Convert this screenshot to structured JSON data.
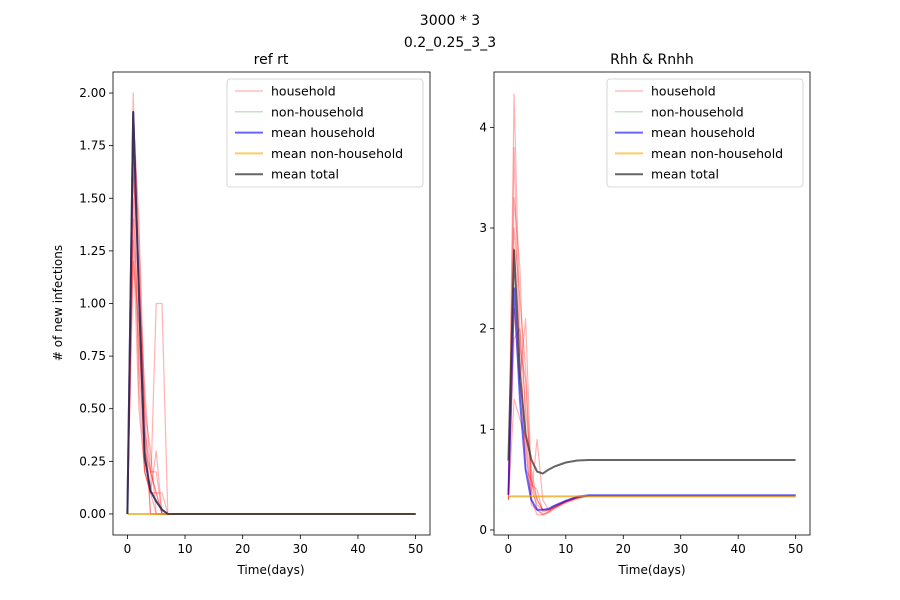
{
  "figure": {
    "suptitle_line1": "3000 * 3",
    "suptitle_line2": "0.2_0.25_3_3"
  },
  "chart_data": [
    {
      "type": "line",
      "title": "ref rt",
      "xlabel": "Time(days)",
      "ylabel": "# of new infections",
      "xlim": [
        -2.5,
        52.5
      ],
      "ylim": [
        -0.1,
        2.1
      ],
      "xticks": [
        0,
        10,
        20,
        30,
        40,
        50
      ],
      "yticks": [
        "0.00",
        "0.25",
        "0.50",
        "0.75",
        "1.00",
        "1.25",
        "1.50",
        "1.75",
        "2.00"
      ],
      "legend": {
        "position": "top-right",
        "entries": [
          "household",
          "non-household",
          "mean household",
          "mean non-household",
          "mean total"
        ]
      },
      "colors": {
        "household": "#ff0000",
        "non_household": "#008000",
        "mean_household": "#0000ff",
        "mean_non_household": "#ffa500",
        "mean_total": "#333333"
      },
      "series": [
        {
          "name": "household",
          "role": "individual",
          "x": [
            0,
            1,
            2,
            3,
            4,
            5,
            6,
            7,
            50
          ],
          "y": [
            0,
            2.0,
            1.0,
            0.5,
            0,
            0,
            0,
            0,
            0
          ]
        },
        {
          "name": "household",
          "role": "individual",
          "x": [
            0,
            1,
            2,
            3,
            4,
            5,
            6,
            7,
            50
          ],
          "y": [
            0,
            1.8,
            0.6,
            0.2,
            0.1,
            0,
            0,
            0,
            0
          ]
        },
        {
          "name": "household",
          "role": "individual",
          "x": [
            0,
            1,
            2,
            3,
            4,
            5,
            6,
            7,
            50
          ],
          "y": [
            0,
            1.6,
            1.2,
            0.3,
            0.2,
            0.1,
            0,
            0,
            0
          ]
        },
        {
          "name": "household",
          "role": "individual",
          "x": [
            0,
            1,
            2,
            3,
            4,
            5,
            6,
            7,
            50
          ],
          "y": [
            0,
            1.9,
            1.4,
            0.5,
            0.3,
            0,
            0,
            0,
            0
          ]
        },
        {
          "name": "household",
          "role": "individual",
          "x": [
            0,
            1,
            2,
            3,
            4,
            5,
            6,
            7,
            50
          ],
          "y": [
            0,
            1.5,
            0.8,
            0.4,
            0,
            0,
            0,
            0,
            0
          ]
        },
        {
          "name": "household",
          "role": "individual",
          "x": [
            0,
            1,
            2,
            3,
            4,
            5,
            6,
            7,
            50
          ],
          "y": [
            0,
            1.2,
            0.9,
            0.2,
            0.1,
            0.3,
            0,
            0,
            0
          ]
        },
        {
          "name": "household",
          "role": "individual",
          "x": [
            0,
            1,
            2,
            3,
            4,
            5,
            6,
            7,
            50
          ],
          "y": [
            0,
            1.7,
            1.1,
            0.6,
            0.2,
            0.1,
            0.1,
            0,
            0
          ]
        },
        {
          "name": "household",
          "role": "individual",
          "x": [
            0,
            1,
            2,
            3,
            4,
            5,
            6,
            7,
            50
          ],
          "y": [
            0,
            1.4,
            0.7,
            0.3,
            0.1,
            1.0,
            1.0,
            0,
            0
          ]
        },
        {
          "name": "household",
          "role": "individual",
          "x": [
            0,
            1,
            2,
            3,
            4,
            5,
            6,
            7,
            50
          ],
          "y": [
            0,
            1.9,
            1.3,
            0.4,
            0.2,
            0.2,
            0,
            0,
            0
          ]
        },
        {
          "name": "household",
          "role": "individual",
          "x": [
            0,
            1,
            2,
            3,
            4,
            5,
            6,
            7,
            50
          ],
          "y": [
            0,
            1.3,
            0.5,
            0.2,
            0.1,
            0.1,
            0,
            0,
            0
          ]
        },
        {
          "name": "non-household",
          "role": "individual",
          "x": [
            0,
            50
          ],
          "y": [
            0,
            0
          ]
        },
        {
          "name": "mean household",
          "role": "mean",
          "x": [
            0,
            1,
            2,
            3,
            4,
            5,
            6,
            7,
            50
          ],
          "y": [
            0,
            1.91,
            1.05,
            0.27,
            0.11,
            0.06,
            0.02,
            0,
            0
          ]
        },
        {
          "name": "mean non-household",
          "role": "mean",
          "x": [
            0,
            50
          ],
          "y": [
            0,
            0
          ]
        },
        {
          "name": "mean total",
          "role": "mean",
          "x": [
            0,
            1,
            2,
            3,
            4,
            5,
            6,
            7,
            50
          ],
          "y": [
            0,
            1.91,
            1.05,
            0.27,
            0.11,
            0.06,
            0.02,
            0,
            0
          ]
        }
      ]
    },
    {
      "type": "line",
      "title": "Rhh & Rnhh",
      "xlabel": "Time(days)",
      "ylabel": "",
      "xlim": [
        -2.5,
        52.5
      ],
      "ylim": [
        -0.05,
        4.55
      ],
      "xticks": [
        0,
        10,
        20,
        30,
        40,
        50
      ],
      "yticks": [
        "0",
        "1",
        "2",
        "3",
        "4"
      ],
      "legend": {
        "position": "top-right",
        "entries": [
          "household",
          "non-household",
          "mean household",
          "mean non-household",
          "mean total"
        ]
      },
      "colors": {
        "household": "#ff0000",
        "non_household": "#008000",
        "mean_household": "#0000ff",
        "mean_non_household": "#ffa500",
        "mean_total": "#333333"
      },
      "series": [
        {
          "name": "household",
          "role": "individual",
          "x": [
            0,
            1,
            2,
            3,
            4,
            5,
            6,
            7,
            8,
            10,
            12,
            14,
            50
          ],
          "y": [
            0.35,
            4.33,
            2.0,
            1.2,
            0.6,
            0.3,
            0.2,
            0.2,
            0.22,
            0.28,
            0.32,
            0.34,
            0.34
          ]
        },
        {
          "name": "household",
          "role": "individual",
          "x": [
            0,
            1,
            2,
            3,
            4,
            5,
            6,
            7,
            8,
            10,
            12,
            14,
            50
          ],
          "y": [
            0.3,
            3.8,
            1.5,
            2.1,
            0.5,
            0.2,
            0.15,
            0.18,
            0.22,
            0.28,
            0.32,
            0.34,
            0.34
          ]
        },
        {
          "name": "household",
          "role": "individual",
          "x": [
            0,
            1,
            2,
            3,
            4,
            5,
            6,
            7,
            8,
            10,
            12,
            14,
            50
          ],
          "y": [
            0.35,
            3.3,
            2.6,
            1.0,
            0.4,
            0.25,
            0.2,
            0.2,
            0.24,
            0.29,
            0.33,
            0.34,
            0.34
          ]
        },
        {
          "name": "household",
          "role": "individual",
          "x": [
            0,
            1,
            2,
            3,
            4,
            5,
            6,
            7,
            8,
            10,
            12,
            14,
            50
          ],
          "y": [
            0.35,
            2.8,
            1.8,
            1.5,
            0.35,
            0.9,
            0.3,
            0.2,
            0.23,
            0.28,
            0.32,
            0.34,
            0.34
          ]
        },
        {
          "name": "household",
          "role": "individual",
          "x": [
            0,
            1,
            2,
            3,
            4,
            5,
            6,
            7,
            8,
            10,
            12,
            14,
            50
          ],
          "y": [
            0.3,
            2.2,
            1.4,
            0.8,
            0.3,
            0.15,
            0.15,
            0.17,
            0.21,
            0.27,
            0.31,
            0.34,
            0.34
          ]
        },
        {
          "name": "household",
          "role": "individual",
          "x": [
            0,
            1,
            2,
            3,
            4,
            5,
            6,
            7,
            8,
            10,
            12,
            14,
            50
          ],
          "y": [
            0.35,
            1.9,
            2.0,
            0.6,
            0.5,
            0.3,
            0.2,
            0.19,
            0.23,
            0.28,
            0.32,
            0.34,
            0.34
          ]
        },
        {
          "name": "household",
          "role": "individual",
          "x": [
            0,
            1,
            2,
            3,
            4,
            5,
            6,
            7,
            8,
            10,
            12,
            14,
            50
          ],
          "y": [
            0.3,
            1.3,
            1.1,
            0.9,
            0.25,
            0.2,
            0.16,
            0.18,
            0.22,
            0.28,
            0.32,
            0.34,
            0.34
          ]
        },
        {
          "name": "household",
          "role": "individual",
          "x": [
            0,
            1,
            2,
            3,
            4,
            5,
            6,
            7,
            8,
            10,
            12,
            14,
            50
          ],
          "y": [
            0.35,
            3.0,
            2.3,
            1.6,
            0.45,
            0.4,
            0.18,
            0.2,
            0.23,
            0.29,
            0.33,
            0.34,
            0.34
          ]
        },
        {
          "name": "non-household",
          "role": "individual",
          "x": [
            0,
            50
          ],
          "y": [
            0.33,
            0.33
          ]
        },
        {
          "name": "mean household",
          "role": "mean",
          "x": [
            0,
            1,
            2,
            3,
            4,
            5,
            6,
            7,
            8,
            10,
            12,
            14,
            50
          ],
          "y": [
            0.35,
            2.4,
            1.3,
            0.6,
            0.3,
            0.2,
            0.2,
            0.21,
            0.24,
            0.29,
            0.33,
            0.345,
            0.345
          ]
        },
        {
          "name": "mean non-household",
          "role": "mean",
          "x": [
            0,
            50
          ],
          "y": [
            0.335,
            0.335
          ]
        },
        {
          "name": "mean total",
          "role": "mean",
          "x": [
            0,
            1,
            2,
            3,
            4,
            5,
            6,
            7,
            8,
            10,
            12,
            14,
            50
          ],
          "y": [
            0.69,
            2.78,
            1.55,
            0.95,
            0.7,
            0.58,
            0.56,
            0.6,
            0.63,
            0.67,
            0.69,
            0.695,
            0.695
          ]
        }
      ]
    }
  ]
}
